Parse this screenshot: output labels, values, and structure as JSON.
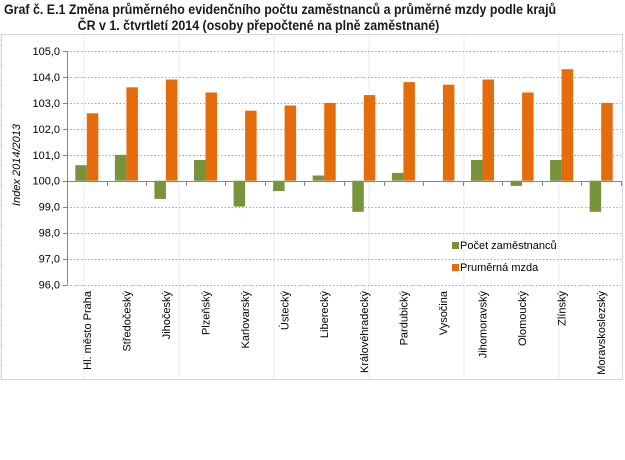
{
  "chart_data": {
    "type": "bar",
    "title_line1": "Graf č. E.1 Změna průměrného evidenčního počtu zaměstnanců a průměrné mzdy podle krajů",
    "title_line2": "ČR v 1. čtvrtletí 2014 (osoby přepočtené na plně zaměstnané)",
    "xlabel": "",
    "ylabel": "Index 2014/2013",
    "ylim": [
      96,
      105
    ],
    "baseline": 100,
    "yticks": [
      "96,0",
      "97,0",
      "98,0",
      "99,0",
      "100,0",
      "101,0",
      "102,0",
      "103,0",
      "104,0",
      "105,0"
    ],
    "ytick_values": [
      96,
      97,
      98,
      99,
      100,
      101,
      102,
      103,
      104,
      105
    ],
    "grid": true,
    "legend_position": "right-lower",
    "categories": [
      "Hl. město Praha",
      "Středočeský",
      "Jihočeský",
      "Plzeňský",
      "Karlovarský",
      "Ústecký",
      "Liberecký",
      "Královéhradecký",
      "Pardubický",
      "Vysočina",
      "Jihomoravský",
      "Olomoucký",
      "Zlínský",
      "Moravskoslezský"
    ],
    "series": [
      {
        "name": "Počet zaměstnanců",
        "color": "#77933C",
        "values": [
          100.6,
          101.0,
          99.3,
          100.8,
          99.0,
          99.6,
          100.2,
          98.8,
          100.3,
          100.0,
          100.8,
          99.8,
          100.8,
          98.8
        ]
      },
      {
        "name": "Prumĕrná mzda",
        "color": "#E46C0A",
        "values": [
          102.6,
          103.6,
          103.9,
          103.4,
          102.7,
          102.9,
          103.0,
          103.3,
          103.8,
          103.7,
          103.9,
          103.4,
          104.3,
          103.0
        ]
      }
    ]
  }
}
